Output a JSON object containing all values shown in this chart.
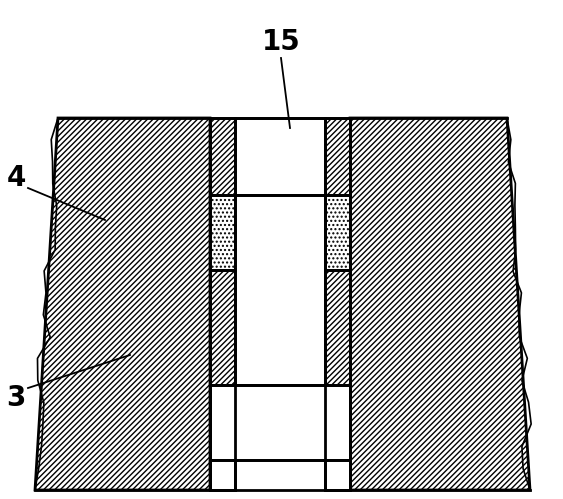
{
  "bg_color": "#ffffff",
  "line_color": "#000000",
  "label_15": "15",
  "label_4": "4",
  "label_3": "3",
  "fig_width": 5.63,
  "fig_height": 4.99,
  "dpi": 100
}
